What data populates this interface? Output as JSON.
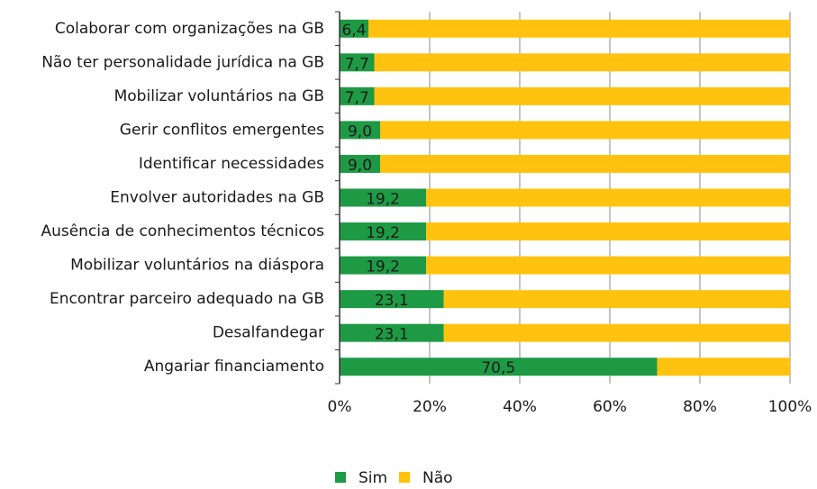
{
  "chart_data": {
    "type": "bar",
    "orientation": "horizontal",
    "stacked": true,
    "categories": [
      "Colaborar com organizações na GB",
      "Não ter personalidade jurídica na GB",
      "Mobilizar voluntários na GB",
      "Gerir conflitos emergentes",
      "Identificar necessidades",
      "Envolver autoridades na GB",
      "Ausência de conhecimentos técnicos",
      "Mobilizar voluntários na diáspora",
      "Encontrar parceiro adequado na GB",
      "Desalfandegar",
      "Angariar financiamento"
    ],
    "series": [
      {
        "name": "Sim",
        "color": "#1e9a45",
        "values": [
          6.4,
          7.7,
          7.7,
          9.0,
          9.0,
          19.2,
          19.2,
          19.2,
          23.1,
          23.1,
          70.5
        ],
        "value_labels": [
          "6,4",
          "7,7",
          "7,7",
          "9,0",
          "9,0",
          "19,2",
          "19,2",
          "19,2",
          "23,1",
          "23,1",
          "70,5"
        ]
      },
      {
        "name": "Não",
        "color": "#ffc30f",
        "values": [
          93.6,
          92.3,
          92.3,
          91.0,
          91.0,
          80.8,
          80.8,
          80.8,
          76.9,
          76.9,
          29.5
        ]
      }
    ],
    "xlim": [
      0,
      100
    ],
    "xticks": [
      {
        "value": 0,
        "label": "0%"
      },
      {
        "value": 20,
        "label": "20%"
      },
      {
        "value": 40,
        "label": "40%"
      },
      {
        "value": 60,
        "label": "60%"
      },
      {
        "value": 80,
        "label": "80%"
      },
      {
        "value": 100,
        "label": "100%"
      }
    ],
    "grid": true,
    "legend": "bottom"
  }
}
